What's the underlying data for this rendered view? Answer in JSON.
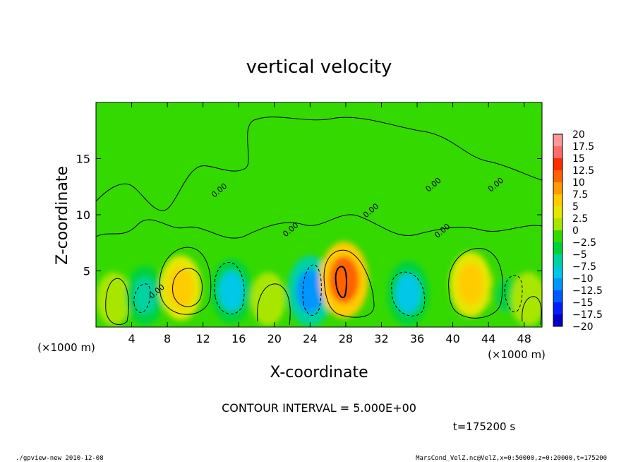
{
  "chart_data": {
    "type": "heatmap",
    "title": "vertical velocity",
    "xlabel": "X-coordinate",
    "ylabel": "Z-coordinate",
    "x_unit": "(×1000 m)",
    "y_unit": "(×1000 m)",
    "xlim": [
      0,
      50
    ],
    "ylim": [
      0,
      20
    ],
    "x_ticks": [
      "4",
      "8",
      "12",
      "16",
      "20",
      "24",
      "28",
      "32",
      "36",
      "40",
      "44",
      "48"
    ],
    "y_ticks": [
      "5",
      "10",
      "15"
    ],
    "contour_interval": "CONTOUR INTERVAL = 5.000E+00",
    "time_label": "t=175200 s",
    "contour_labels": [
      "0.00"
    ],
    "colorbar": {
      "levels": [
        "20",
        "17.5",
        "15",
        "12.5",
        "10",
        "7.5",
        "5",
        "2.5",
        "0",
        "−2.5",
        "−5",
        "−7.5",
        "−10",
        "−12.5",
        "−15",
        "−17.5",
        "−20"
      ],
      "colors": [
        "#ff9898",
        "#ff6a6a",
        "#ff2c00",
        "#ff6200",
        "#ff9a00",
        "#ffcc00",
        "#e6e600",
        "#a8e600",
        "#34d900",
        "#00d23c",
        "#00d2a0",
        "#00c8e6",
        "#0096ff",
        "#005aff",
        "#001eff",
        "#0000c8",
        "#6600cc"
      ]
    },
    "features": [
      {
        "x": 2.0,
        "z": 2.5,
        "value": 2.5
      },
      {
        "x": 5.5,
        "z": 2.8,
        "value": -5
      },
      {
        "x": 9.5,
        "z": 3.5,
        "value": 7.5
      },
      {
        "x": 15.2,
        "z": 3.2,
        "value": -7.5
      },
      {
        "x": 19.3,
        "z": 2.5,
        "value": 2.5
      },
      {
        "x": 24.0,
        "z": 3.2,
        "value": -10
      },
      {
        "x": 27.8,
        "z": 4.2,
        "value": 12.5
      },
      {
        "x": 35.0,
        "z": 3.0,
        "value": -7.5
      },
      {
        "x": 42.0,
        "z": 3.8,
        "value": 7.5
      },
      {
        "x": 46.0,
        "z": 2.8,
        "value": -2.5
      },
      {
        "x": 48.5,
        "z": 2.5,
        "value": 2.5
      }
    ]
  },
  "footer": {
    "left": "./gpview-new  2010-12-08",
    "right": "MarsCond_VelZ.nc@VelZ,x=0:50000,z=0:20000,t=175200"
  }
}
